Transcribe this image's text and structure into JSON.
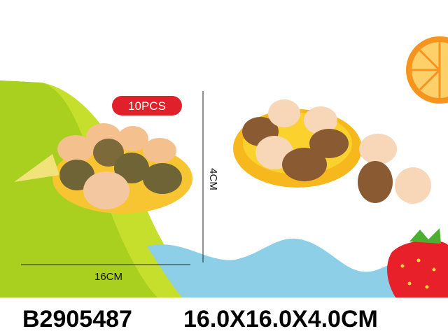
{
  "badge": "10PCS",
  "height_label": "4CM",
  "width_label": "16CM",
  "footer": {
    "code": "B2905487",
    "size": "16.0X16.0X4.0CM"
  }
}
